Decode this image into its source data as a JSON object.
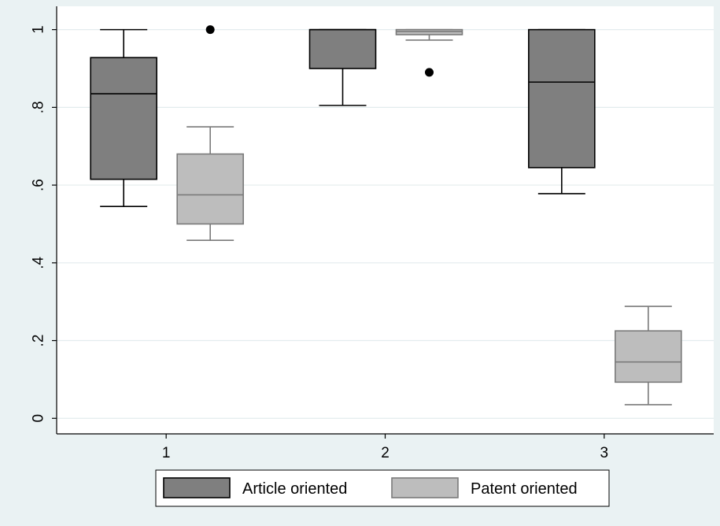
{
  "chart_data": {
    "type": "boxplot",
    "title": "",
    "xlabel": "",
    "ylabel": "",
    "categories": [
      "1",
      "2",
      "3"
    ],
    "ylim": [
      -0.04,
      1.06
    ],
    "yticks": [
      {
        "value": 0,
        "label": "0"
      },
      {
        "value": 0.2,
        "label": ".2"
      },
      {
        "value": 0.4,
        "label": ".4"
      },
      {
        "value": 0.6,
        "label": ".6"
      },
      {
        "value": 0.8,
        "label": ".8"
      },
      {
        "value": 1,
        "label": "1"
      }
    ],
    "grid": true,
    "legend_position": "bottom",
    "series": [
      {
        "name": "Article oriented",
        "color": "#7f7f7f",
        "stroke": "#000000",
        "boxes": [
          {
            "category": "1",
            "whisker_low": 0.545,
            "q1": 0.615,
            "median": 0.835,
            "q3": 0.928,
            "whisker_high": 1.0,
            "outliers": []
          },
          {
            "category": "2",
            "whisker_low": 0.805,
            "q1": 0.9,
            "median": 1.0,
            "q3": 1.0,
            "whisker_high": 1.0,
            "outliers": []
          },
          {
            "category": "3",
            "whisker_low": 0.578,
            "q1": 0.645,
            "median": 0.865,
            "q3": 1.0,
            "whisker_high": 1.0,
            "outliers": []
          }
        ]
      },
      {
        "name": "Patent oriented",
        "color": "#bdbdbd",
        "stroke": "#7a7a7a",
        "boxes": [
          {
            "category": "1",
            "whisker_low": 0.458,
            "q1": 0.5,
            "median": 0.575,
            "q3": 0.68,
            "whisker_high": 0.75,
            "outliers": [
              1.0
            ]
          },
          {
            "category": "2",
            "whisker_low": 0.973,
            "q1": 0.987,
            "median": 0.995,
            "q3": 1.0,
            "whisker_high": 1.0,
            "outliers": [
              0.89
            ]
          },
          {
            "category": "3",
            "whisker_low": 0.035,
            "q1": 0.093,
            "median": 0.145,
            "q3": 0.225,
            "whisker_high": 0.288,
            "outliers": []
          }
        ]
      }
    ]
  }
}
